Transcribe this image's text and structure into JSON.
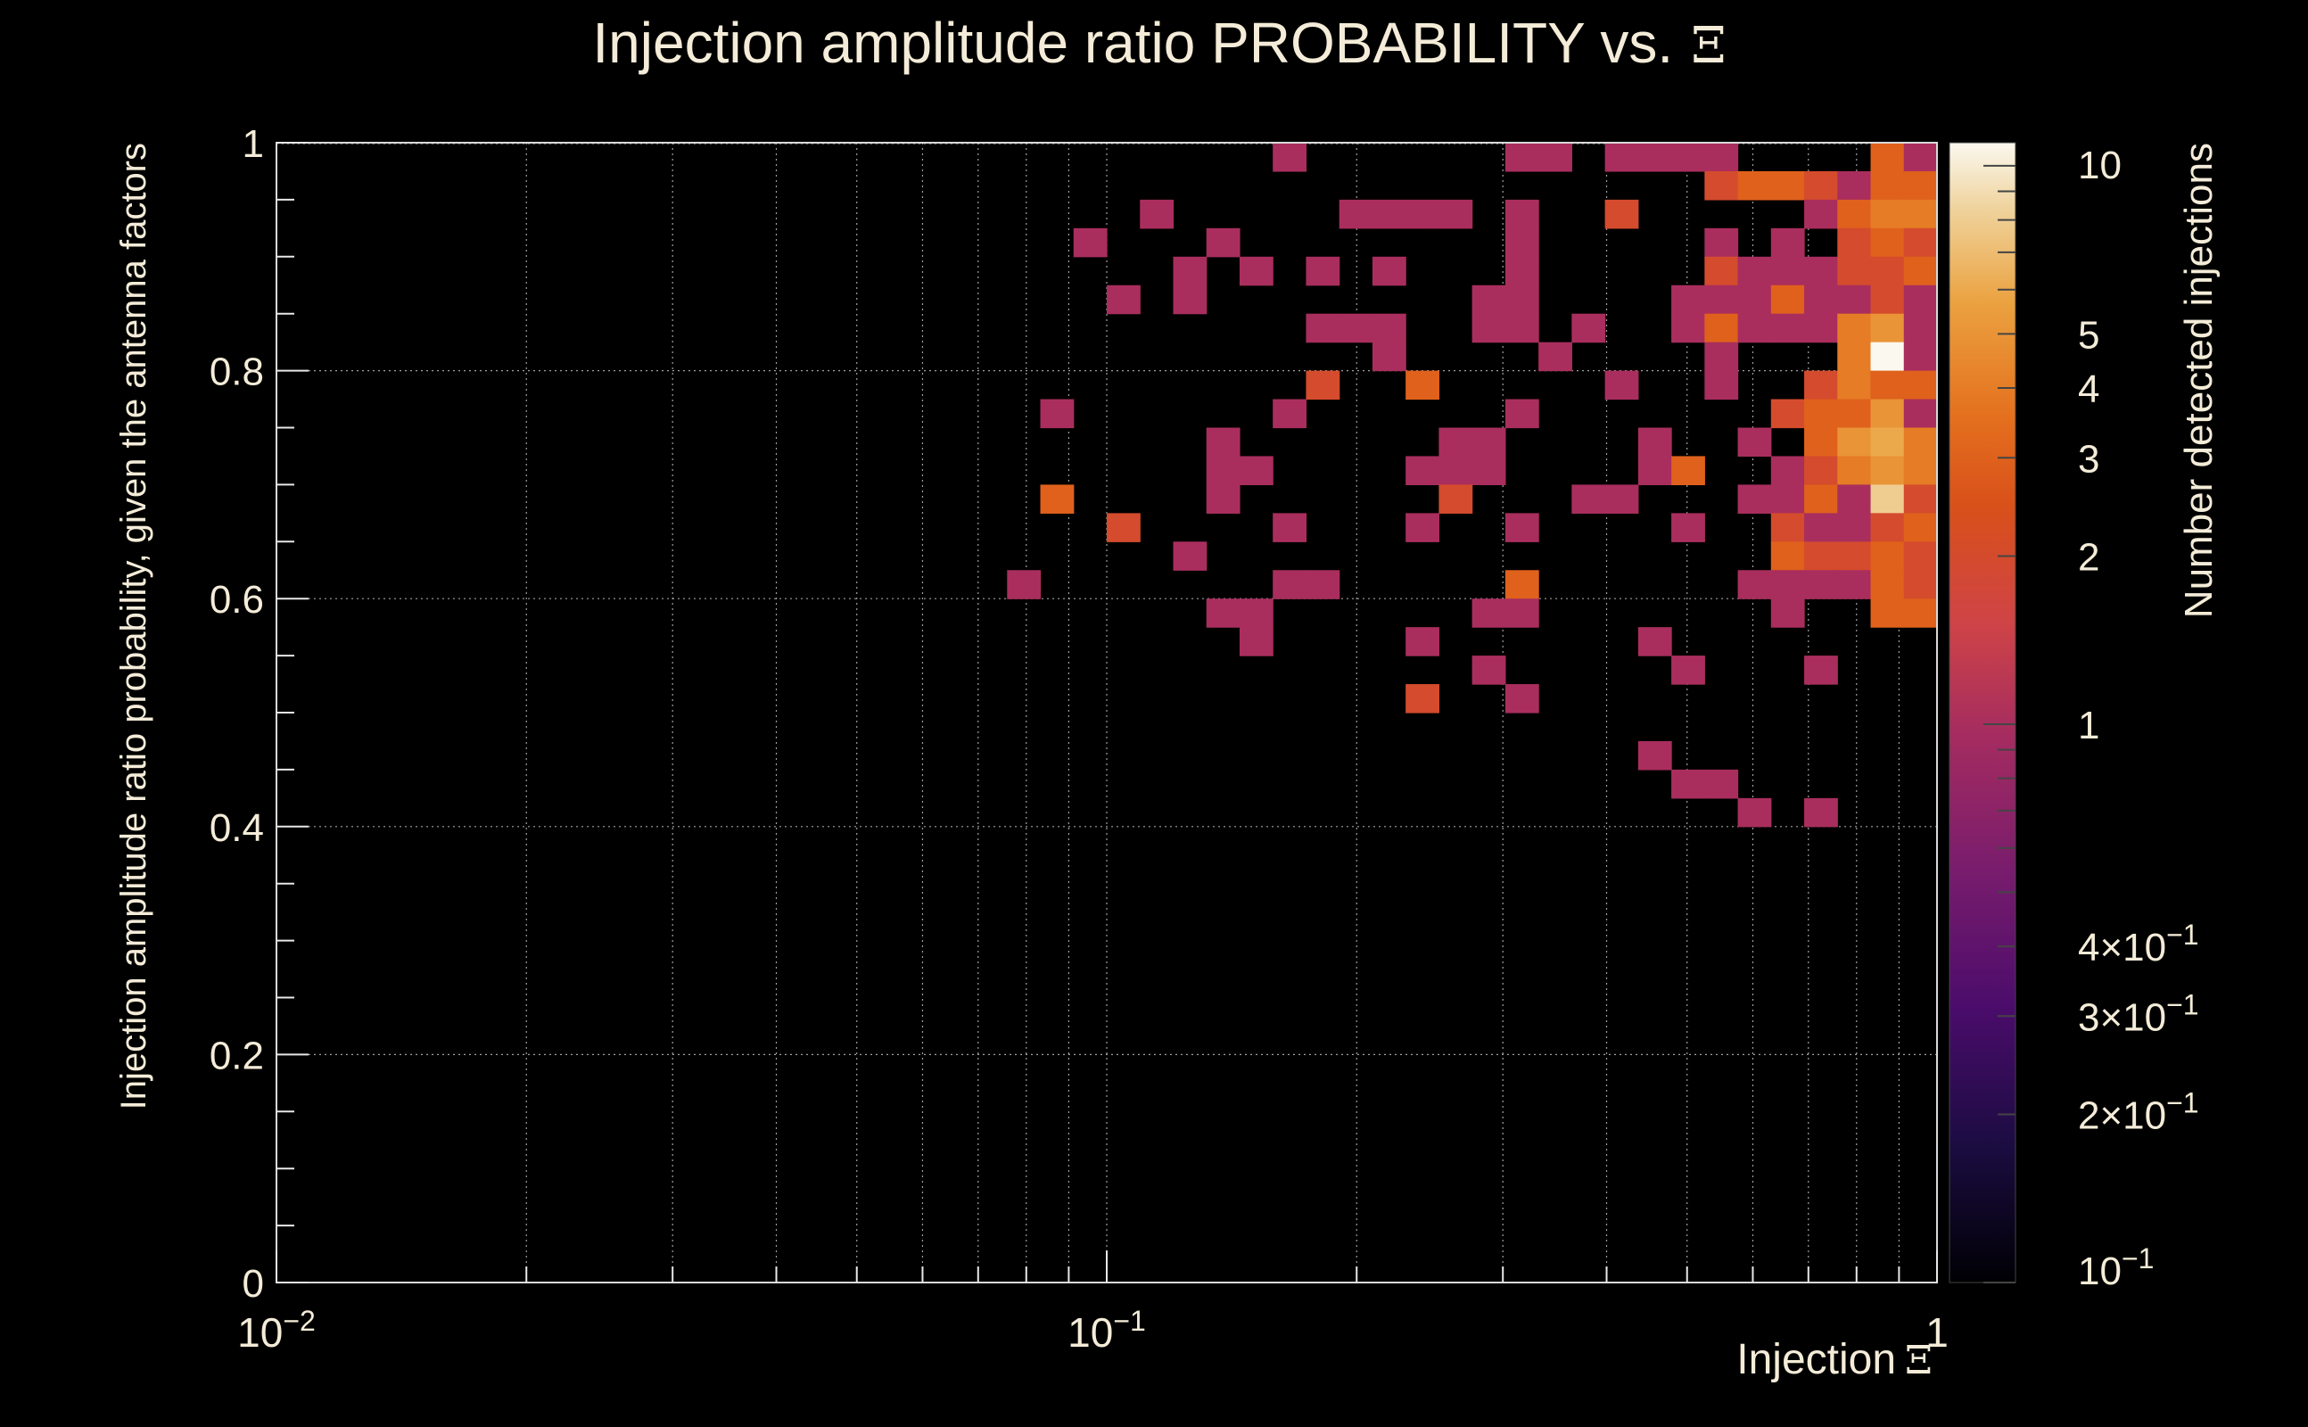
{
  "colors": {
    "background": "#000000",
    "text": "#f4ecd8",
    "grid": "#c8c8c8"
  },
  "chart_data": {
    "type": "heatmap",
    "title": "Injection amplitude ratio PROBABILITY vs.",
    "title_symbol": "Ξ",
    "xlabel": "Injection",
    "xlabel_symbol": "Ξ",
    "ylabel": "Injection amplitude ratio probability, given the antenna factors",
    "colorbar_label": "Number detected injections",
    "x_scale": "log",
    "xlim": [
      0.01,
      1
    ],
    "ylim": [
      0,
      1
    ],
    "z_scale": "log",
    "zlim": [
      0.1,
      11
    ],
    "grid": true,
    "x_ticks": [
      {
        "v": 0.01,
        "b": "10",
        "e": "−2"
      },
      {
        "v": 0.1,
        "b": "10",
        "e": "−1"
      },
      {
        "v": 1,
        "b": "1",
        "e": ""
      }
    ],
    "y_ticks": [
      {
        "v": 0,
        "t": "0"
      },
      {
        "v": 0.2,
        "t": "0.2"
      },
      {
        "v": 0.4,
        "t": "0.4"
      },
      {
        "v": 0.6,
        "t": "0.6"
      },
      {
        "v": 0.8,
        "t": "0.8"
      },
      {
        "v": 1,
        "t": "1"
      }
    ],
    "z_ticks": [
      {
        "v": 10,
        "t": "10"
      },
      {
        "v": 5,
        "t": "5"
      },
      {
        "v": 4,
        "t": "4"
      },
      {
        "v": 3,
        "t": "3"
      },
      {
        "v": 2,
        "t": "2"
      },
      {
        "v": 1,
        "t": "1"
      },
      {
        "v": 0.4,
        "t": "4×10",
        "e": "−1"
      },
      {
        "v": 0.3,
        "t": "3×10",
        "e": "−1"
      },
      {
        "v": 0.2,
        "t": "2×10",
        "e": "−1"
      },
      {
        "v": 0.1,
        "t": "10",
        "e": "−1"
      }
    ],
    "x_bins": 50,
    "y_bins": 40,
    "cells": [
      [
        30,
        39,
        1
      ],
      [
        37,
        39,
        1
      ],
      [
        38,
        39,
        1
      ],
      [
        40,
        39,
        1
      ],
      [
        41,
        39,
        1
      ],
      [
        42,
        39,
        1
      ],
      [
        43,
        39,
        1
      ],
      [
        48,
        39,
        3
      ],
      [
        49,
        39,
        1
      ],
      [
        43,
        38,
        2
      ],
      [
        44,
        38,
        3
      ],
      [
        45,
        38,
        3
      ],
      [
        46,
        38,
        2
      ],
      [
        47,
        38,
        1
      ],
      [
        48,
        38,
        3
      ],
      [
        49,
        38,
        3
      ],
      [
        26,
        37,
        1
      ],
      [
        32,
        37,
        1
      ],
      [
        33,
        37,
        1
      ],
      [
        34,
        37,
        1
      ],
      [
        35,
        37,
        1
      ],
      [
        37,
        37,
        1
      ],
      [
        40,
        37,
        2
      ],
      [
        46,
        37,
        1
      ],
      [
        47,
        37,
        3
      ],
      [
        48,
        37,
        4
      ],
      [
        49,
        37,
        4
      ],
      [
        24,
        36,
        1
      ],
      [
        28,
        36,
        1
      ],
      [
        37,
        36,
        1
      ],
      [
        43,
        36,
        1
      ],
      [
        45,
        36,
        1
      ],
      [
        47,
        36,
        2
      ],
      [
        48,
        36,
        3
      ],
      [
        49,
        36,
        2
      ],
      [
        27,
        35,
        1
      ],
      [
        29,
        35,
        1
      ],
      [
        31,
        35,
        1
      ],
      [
        33,
        35,
        1
      ],
      [
        37,
        35,
        1
      ],
      [
        43,
        35,
        2
      ],
      [
        44,
        35,
        1
      ],
      [
        45,
        35,
        1
      ],
      [
        46,
        35,
        1
      ],
      [
        47,
        35,
        2
      ],
      [
        48,
        35,
        2
      ],
      [
        49,
        35,
        3
      ],
      [
        25,
        34,
        1
      ],
      [
        27,
        34,
        1
      ],
      [
        36,
        34,
        1
      ],
      [
        37,
        34,
        1
      ],
      [
        42,
        34,
        1
      ],
      [
        43,
        34,
        1
      ],
      [
        44,
        34,
        1
      ],
      [
        45,
        34,
        3
      ],
      [
        46,
        34,
        1
      ],
      [
        47,
        34,
        1
      ],
      [
        48,
        34,
        2
      ],
      [
        49,
        34,
        1
      ],
      [
        31,
        33,
        1
      ],
      [
        32,
        33,
        1
      ],
      [
        33,
        33,
        1
      ],
      [
        36,
        33,
        1
      ],
      [
        37,
        33,
        1
      ],
      [
        39,
        33,
        1
      ],
      [
        42,
        33,
        1
      ],
      [
        43,
        33,
        3
      ],
      [
        44,
        33,
        1
      ],
      [
        45,
        33,
        1
      ],
      [
        46,
        33,
        1
      ],
      [
        47,
        33,
        4
      ],
      [
        48,
        33,
        5
      ],
      [
        49,
        33,
        1
      ],
      [
        33,
        32,
        1
      ],
      [
        38,
        32,
        1
      ],
      [
        43,
        32,
        1
      ],
      [
        47,
        32,
        4
      ],
      [
        48,
        32,
        11
      ],
      [
        49,
        32,
        1
      ],
      [
        31,
        31,
        2
      ],
      [
        34,
        31,
        3
      ],
      [
        40,
        31,
        1
      ],
      [
        43,
        31,
        1
      ],
      [
        46,
        31,
        2
      ],
      [
        47,
        31,
        4
      ],
      [
        48,
        31,
        3
      ],
      [
        49,
        31,
        3
      ],
      [
        23,
        30,
        1
      ],
      [
        30,
        30,
        1
      ],
      [
        37,
        30,
        1
      ],
      [
        45,
        30,
        2
      ],
      [
        46,
        30,
        3
      ],
      [
        47,
        30,
        3
      ],
      [
        48,
        30,
        5
      ],
      [
        49,
        30,
        1
      ],
      [
        28,
        29,
        1
      ],
      [
        35,
        29,
        1
      ],
      [
        36,
        29,
        1
      ],
      [
        41,
        29,
        1
      ],
      [
        44,
        29,
        1
      ],
      [
        46,
        29,
        3
      ],
      [
        47,
        29,
        5
      ],
      [
        48,
        29,
        6
      ],
      [
        49,
        29,
        4
      ],
      [
        28,
        28,
        1
      ],
      [
        29,
        28,
        1
      ],
      [
        34,
        28,
        1
      ],
      [
        35,
        28,
        1
      ],
      [
        36,
        28,
        1
      ],
      [
        41,
        28,
        1
      ],
      [
        42,
        28,
        3
      ],
      [
        45,
        28,
        1
      ],
      [
        46,
        28,
        2
      ],
      [
        47,
        28,
        4
      ],
      [
        48,
        28,
        5
      ],
      [
        49,
        28,
        4
      ],
      [
        23,
        27,
        3
      ],
      [
        28,
        27,
        1
      ],
      [
        35,
        27,
        2
      ],
      [
        39,
        27,
        1
      ],
      [
        40,
        27,
        1
      ],
      [
        44,
        27,
        1
      ],
      [
        45,
        27,
        1
      ],
      [
        46,
        27,
        3
      ],
      [
        47,
        27,
        1
      ],
      [
        48,
        27,
        8
      ],
      [
        49,
        27,
        2
      ],
      [
        25,
        26,
        2
      ],
      [
        30,
        26,
        1
      ],
      [
        34,
        26,
        1
      ],
      [
        37,
        26,
        1
      ],
      [
        42,
        26,
        1
      ],
      [
        45,
        26,
        2
      ],
      [
        46,
        26,
        1
      ],
      [
        47,
        26,
        1
      ],
      [
        48,
        26,
        2
      ],
      [
        49,
        26,
        3
      ],
      [
        27,
        25,
        1
      ],
      [
        45,
        25,
        3
      ],
      [
        46,
        25,
        2
      ],
      [
        47,
        25,
        2
      ],
      [
        48,
        25,
        3
      ],
      [
        49,
        25,
        2
      ],
      [
        22,
        24,
        1
      ],
      [
        30,
        24,
        1
      ],
      [
        31,
        24,
        1
      ],
      [
        37,
        24,
        3
      ],
      [
        44,
        24,
        1
      ],
      [
        45,
        24,
        1
      ],
      [
        46,
        24,
        1
      ],
      [
        47,
        24,
        1
      ],
      [
        48,
        24,
        3
      ],
      [
        49,
        24,
        2
      ],
      [
        28,
        23,
        1
      ],
      [
        29,
        23,
        1
      ],
      [
        36,
        23,
        1
      ],
      [
        37,
        23,
        1
      ],
      [
        45,
        23,
        1
      ],
      [
        48,
        23,
        3
      ],
      [
        49,
        23,
        3
      ],
      [
        29,
        22,
        1
      ],
      [
        34,
        22,
        1
      ],
      [
        41,
        22,
        1
      ],
      [
        36,
        21,
        1
      ],
      [
        42,
        21,
        1
      ],
      [
        46,
        21,
        1
      ],
      [
        34,
        20,
        2
      ],
      [
        37,
        20,
        1
      ],
      [
        41,
        18,
        1
      ],
      [
        42,
        17,
        1
      ],
      [
        43,
        17,
        1
      ],
      [
        44,
        16,
        1
      ],
      [
        46,
        16,
        1
      ]
    ]
  }
}
